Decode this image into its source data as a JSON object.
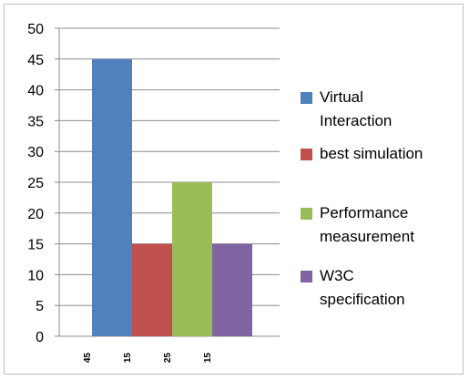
{
  "chart_data": {
    "type": "bar",
    "categories": [
      "45",
      "15",
      "25",
      "15"
    ],
    "values": [
      45,
      15,
      25,
      15
    ],
    "ylim": [
      0,
      50
    ],
    "yticks": [
      0,
      5,
      10,
      15,
      20,
      25,
      30,
      35,
      40,
      45,
      50
    ],
    "grid": true,
    "legend_placement": "right",
    "series": [
      {
        "name": "Virtual Interaction",
        "legend_lines": [
          "Virtual",
          "Interaction"
        ],
        "color": "#4f81bd"
      },
      {
        "name": "best simulation",
        "legend_lines": [
          "best simulation"
        ],
        "color": "#c0504d"
      },
      {
        "name": "Performance measurement",
        "legend_lines": [
          "Performance",
          "measurement"
        ],
        "color": "#9bbb59"
      },
      {
        "name": "W3C specification",
        "legend_lines": [
          "W3C",
          "specification"
        ],
        "color": "#8064a2"
      }
    ]
  }
}
